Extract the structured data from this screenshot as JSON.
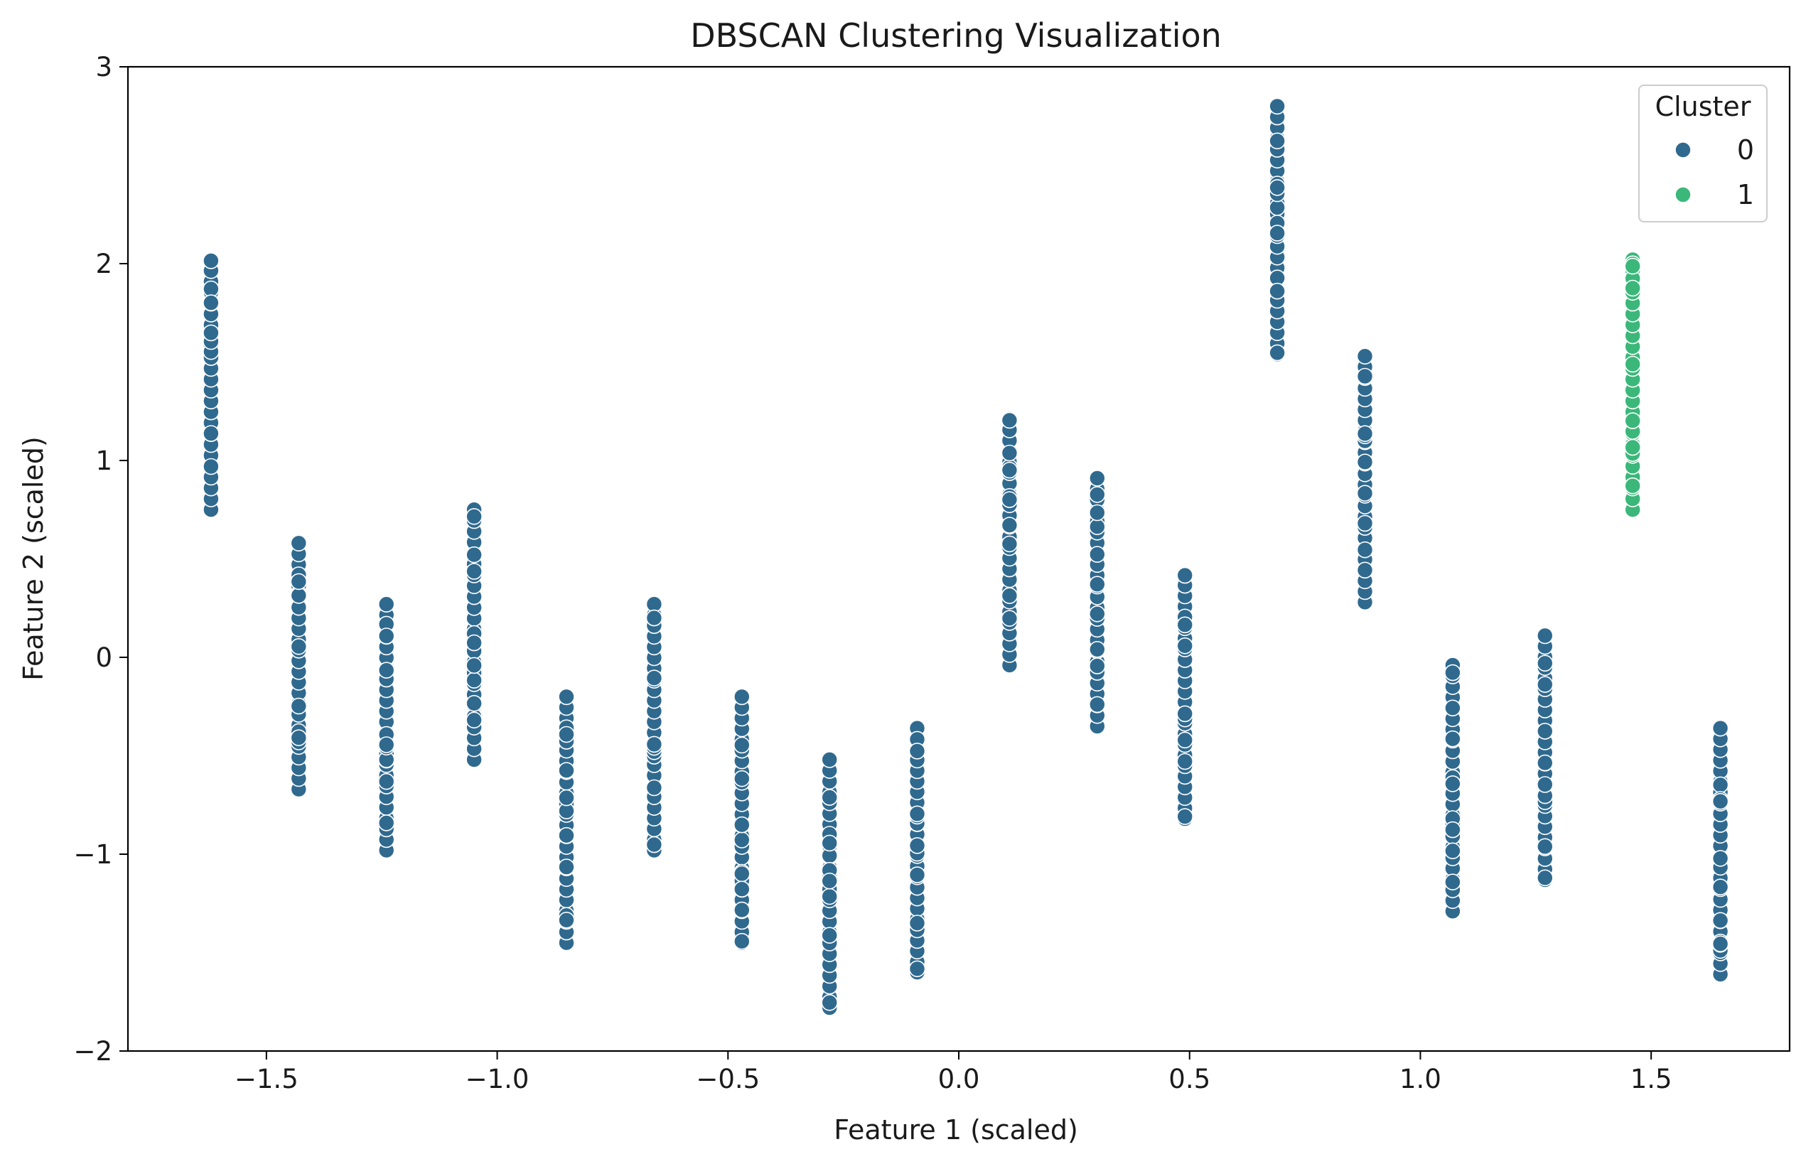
{
  "chart_data": {
    "type": "scatter",
    "title": "DBSCAN Clustering Visualization",
    "xlabel": "Feature 1 (scaled)",
    "ylabel": "Feature 2 (scaled)",
    "xlim": [
      -1.8,
      1.8
    ],
    "ylim": [
      -2.0,
      3.0
    ],
    "xticks": [
      -1.5,
      -1.0,
      -0.5,
      0.0,
      0.5,
      1.0,
      1.5
    ],
    "xtick_labels": [
      "−1.5",
      "−1.0",
      "−0.5",
      "0.0",
      "0.5",
      "1.0",
      "1.5"
    ],
    "yticks": [
      -2,
      -1,
      0,
      1,
      2,
      3
    ],
    "ytick_labels": [
      "−2",
      "−1",
      "0",
      "1",
      "2",
      "3"
    ],
    "grid": false,
    "legend": {
      "title": "Cluster",
      "placement": "top-right"
    },
    "series": [
      {
        "name": "0",
        "color": "#30698e",
        "columns": [
          {
            "x": -1.62,
            "ymin": 0.75,
            "ymax": 2.02
          },
          {
            "x": -1.43,
            "ymin": -0.67,
            "ymax": 0.58
          },
          {
            "x": -1.24,
            "ymin": -0.98,
            "ymax": 0.27
          },
          {
            "x": -1.05,
            "ymin": -0.52,
            "ymax": 0.75
          },
          {
            "x": -0.85,
            "ymin": -1.45,
            "ymax": -0.2
          },
          {
            "x": -0.66,
            "ymin": -0.98,
            "ymax": 0.27
          },
          {
            "x": -0.47,
            "ymin": -1.45,
            "ymax": -0.2
          },
          {
            "x": -0.28,
            "ymin": -1.78,
            "ymax": -0.52
          },
          {
            "x": -0.09,
            "ymin": -1.6,
            "ymax": -0.36
          },
          {
            "x": 0.11,
            "ymin": -0.04,
            "ymax": 1.21
          },
          {
            "x": 0.3,
            "ymin": -0.35,
            "ymax": 0.91
          },
          {
            "x": 0.49,
            "ymin": -0.82,
            "ymax": 0.42
          },
          {
            "x": 0.69,
            "ymin": 1.54,
            "ymax": 2.8
          },
          {
            "x": 0.88,
            "ymin": 0.28,
            "ymax": 1.53
          },
          {
            "x": 1.07,
            "ymin": -1.29,
            "ymax": -0.04
          },
          {
            "x": 1.27,
            "ymin": -1.13,
            "ymax": 0.11
          },
          {
            "x": 1.65,
            "ymin": -1.61,
            "ymax": -0.36
          }
        ]
      },
      {
        "name": "1",
        "color": "#3bb77a",
        "columns": [
          {
            "x": 1.46,
            "ymin": 0.75,
            "ymax": 2.02
          }
        ]
      }
    ]
  }
}
